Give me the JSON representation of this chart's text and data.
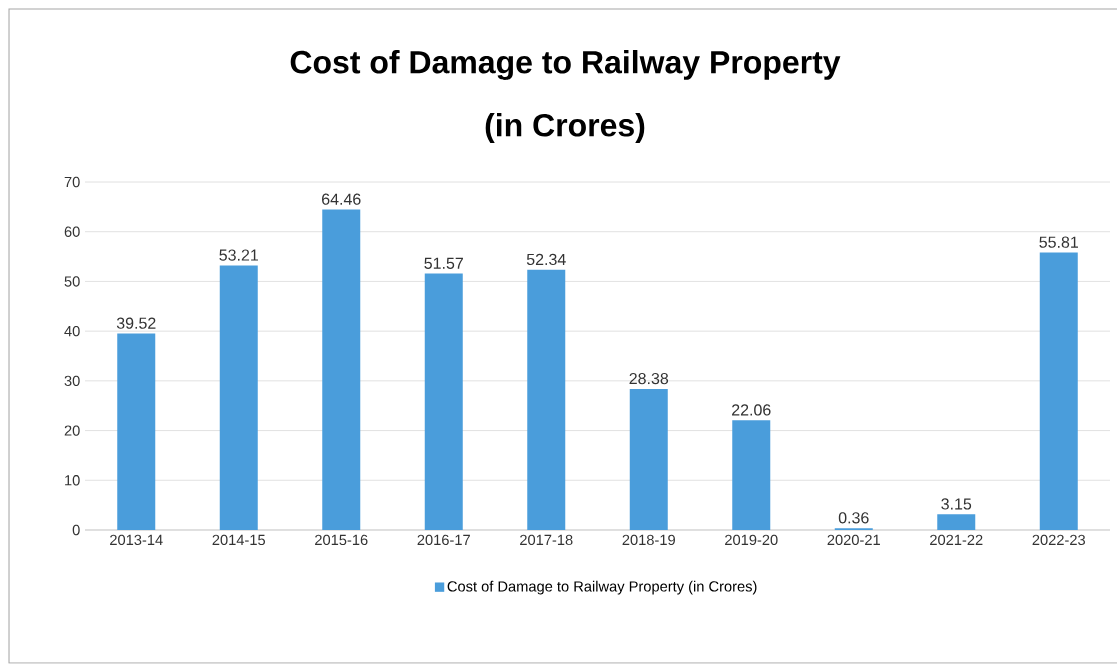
{
  "chart_data": {
    "type": "bar",
    "title": "Cost of Damage to Railway Property",
    "subtitle": "(in Crores)",
    "categories": [
      "2013-14",
      "2014-15",
      "2015-16",
      "2016-17",
      "2017-18",
      "2018-19",
      "2019-20",
      "2020-21",
      "2021-22",
      "2022-23"
    ],
    "series": [
      {
        "name": "Cost of Damage to Railway Property (in Crores)",
        "color": "#4a9ddb",
        "values": [
          39.52,
          53.21,
          64.46,
          51.57,
          52.34,
          28.38,
          22.06,
          0.36,
          3.15,
          55.81
        ]
      }
    ],
    "ylim": [
      0,
      70
    ],
    "yticks": [
      0,
      10,
      20,
      30,
      40,
      50,
      60,
      70
    ],
    "grid": "y",
    "legend": "bottom",
    "data_labels": true
  }
}
